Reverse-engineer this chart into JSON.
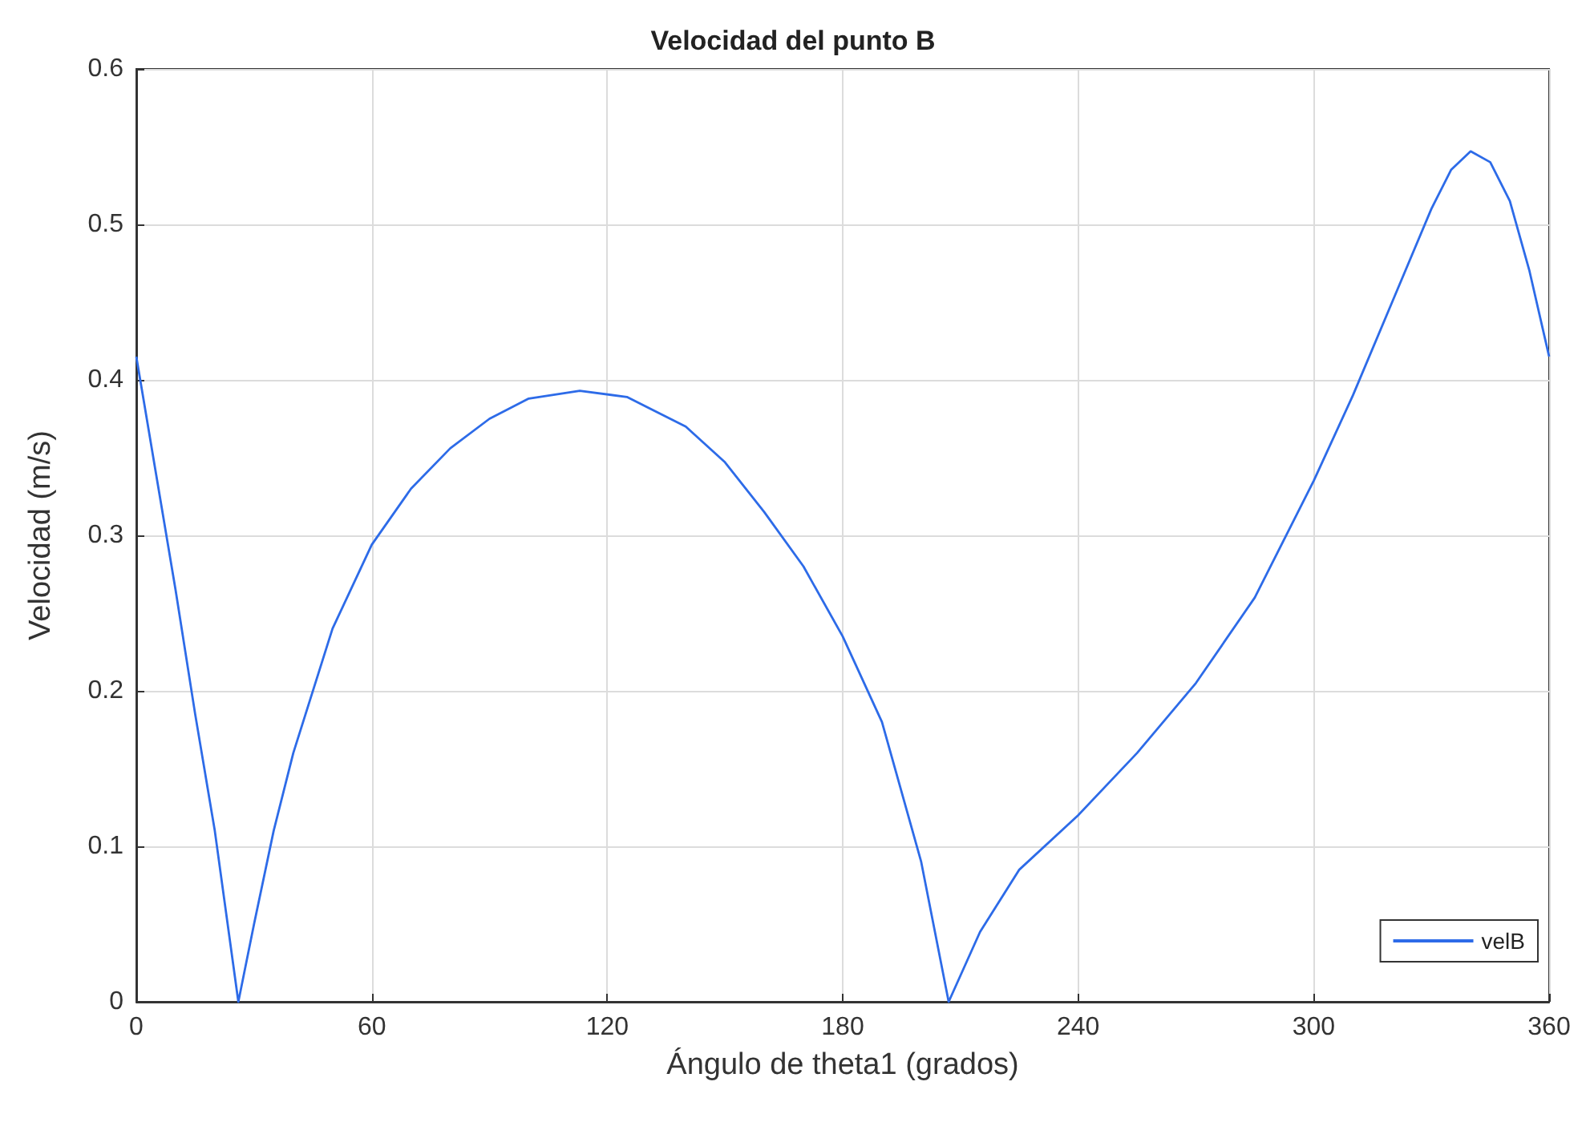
{
  "chart_data": {
    "type": "line",
    "title": "Velocidad del punto B",
    "xlabel": "Ángulo de theta1 (grados)",
    "ylabel": "Velocidad (m/s)",
    "x": [
      0,
      5,
      10,
      15,
      20,
      26,
      30,
      35,
      40,
      50,
      60,
      70,
      80,
      90,
      100,
      113,
      125,
      140,
      150,
      160,
      170,
      180,
      190,
      200,
      207,
      215,
      225,
      240,
      255,
      270,
      285,
      300,
      310,
      320,
      330,
      335,
      340,
      345,
      350,
      355,
      360
    ],
    "series": [
      {
        "name": "velB",
        "color": "#2d6be8",
        "values": [
          0.415,
          0.34,
          0.265,
          0.185,
          0.11,
          0,
          0.05,
          0.11,
          0.16,
          0.24,
          0.294,
          0.33,
          0.356,
          0.375,
          0.388,
          0.393,
          0.389,
          0.37,
          0.347,
          0.315,
          0.28,
          0.235,
          0.18,
          0.09,
          0,
          0.045,
          0.085,
          0.12,
          0.16,
          0.205,
          0.26,
          0.335,
          0.39,
          0.45,
          0.51,
          0.535,
          0.547,
          0.54,
          0.515,
          0.47,
          0.415
        ]
      }
    ],
    "xlim": [
      0,
      360
    ],
    "xticks": [
      0,
      60,
      120,
      180,
      240,
      300,
      360
    ],
    "ylim": [
      0,
      0.6
    ],
    "yticks": [
      0,
      0.1,
      0.2,
      0.3,
      0.4,
      0.5,
      0.6
    ],
    "grid": true,
    "legend": "bottom right",
    "marker": "none",
    "line_style": "solid"
  }
}
